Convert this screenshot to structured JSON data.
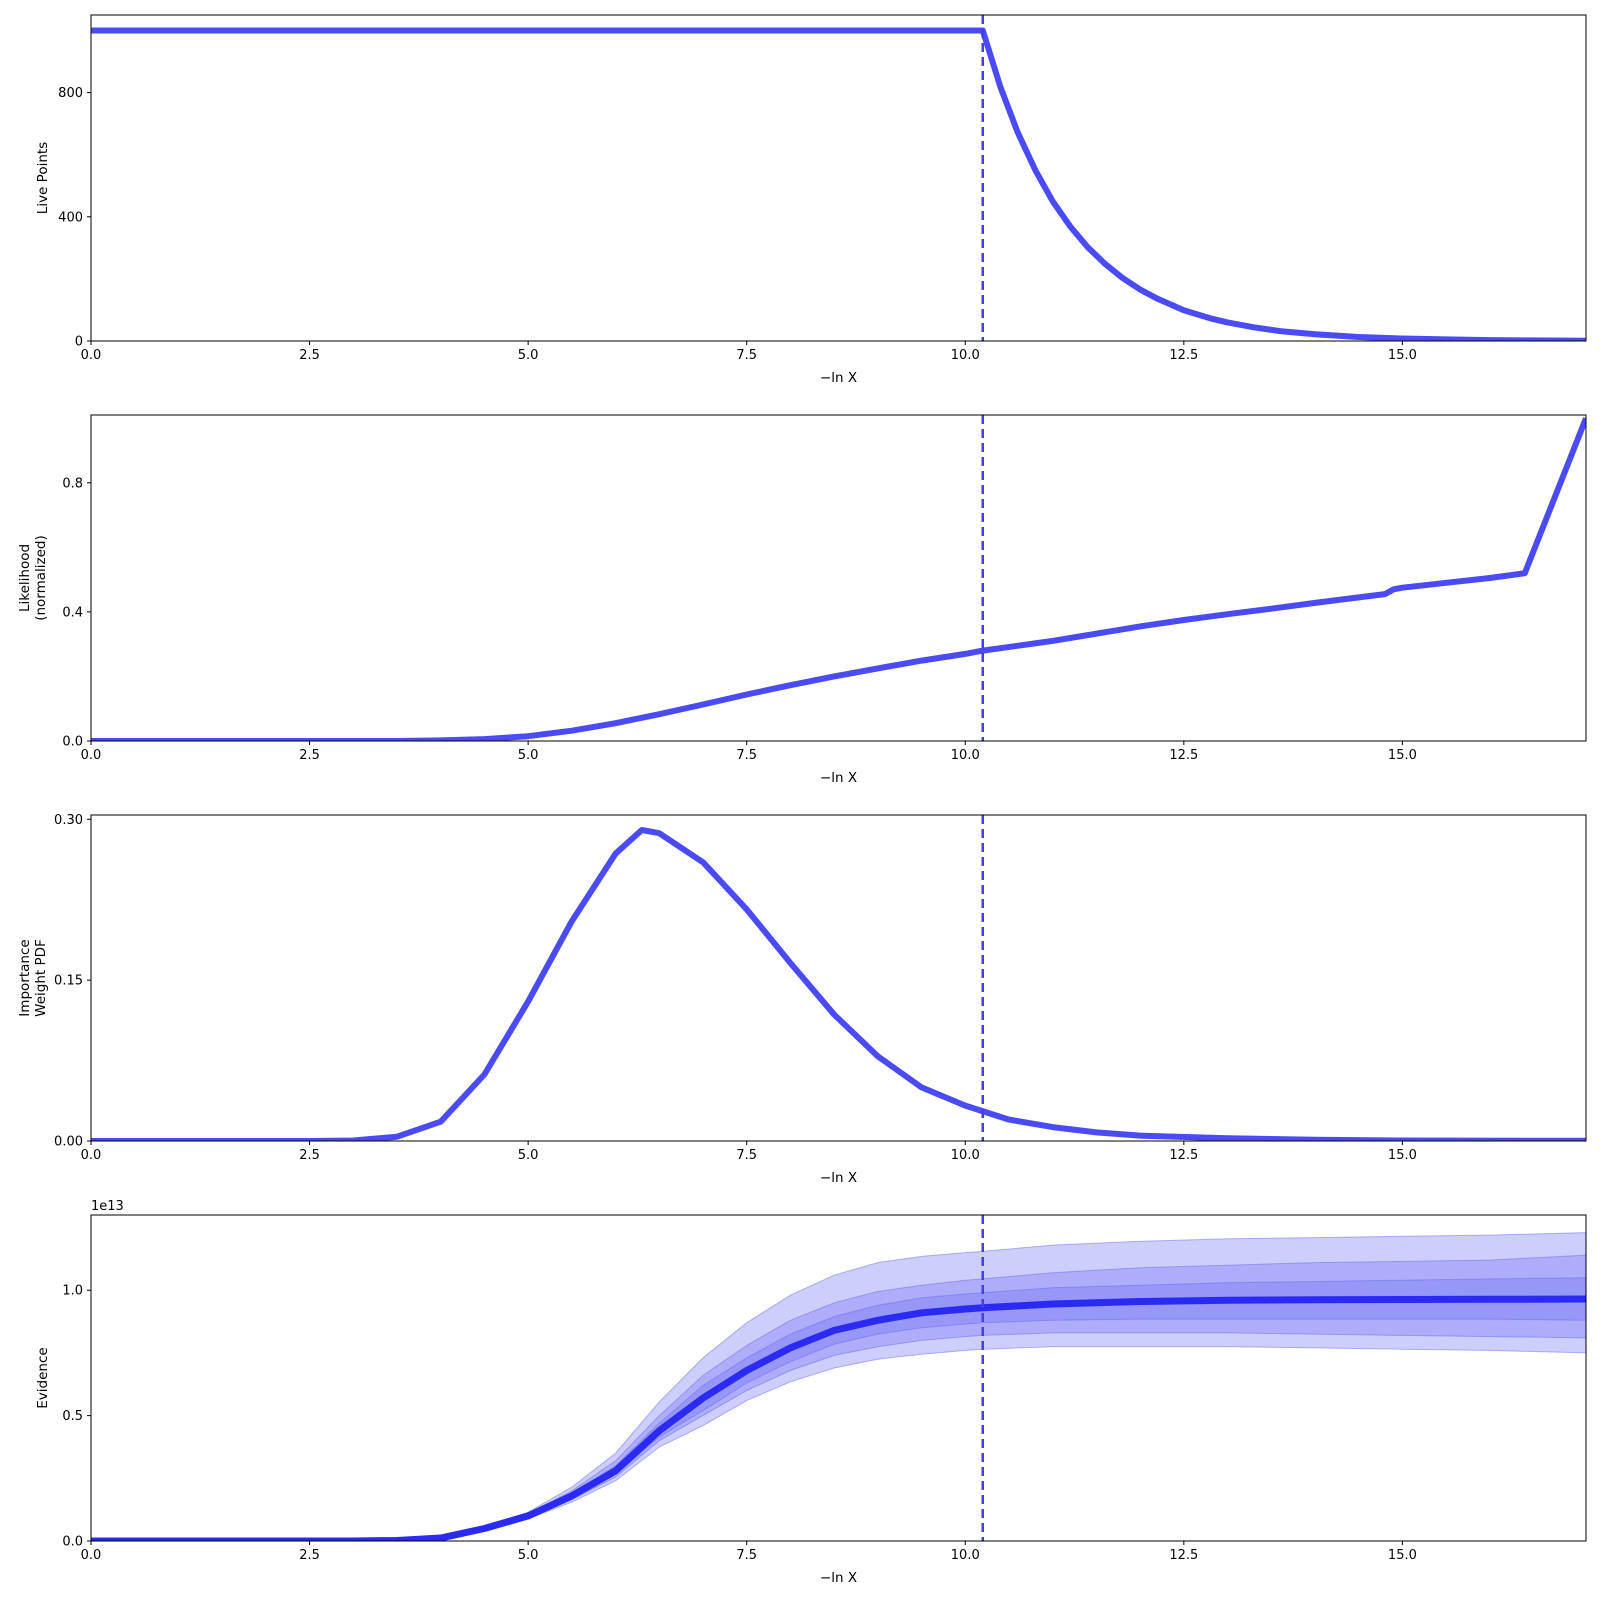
{
  "chart_data": [
    {
      "type": "line",
      "xlabel": "−ln X",
      "ylabel": [
        "Live Points"
      ],
      "xlim": [
        0,
        17.1
      ],
      "ylim": [
        0,
        1050
      ],
      "xticks": [
        0,
        2.5,
        5,
        7.5,
        10,
        12.5,
        15
      ],
      "xtick_labels": [
        "0.0",
        "2.5",
        "5.0",
        "7.5",
        "10.0",
        "12.5",
        "15.0"
      ],
      "yticks": [
        0,
        400,
        800
      ],
      "ytick_labels": [
        "0",
        "400",
        "800"
      ],
      "line_color": "#4b4bf5",
      "vline_x": 10.2,
      "x": [
        0,
        10.2,
        10.4,
        10.6,
        10.8,
        11.0,
        11.2,
        11.4,
        11.6,
        11.8,
        12.0,
        12.2,
        12.5,
        12.8,
        13.0,
        13.3,
        13.6,
        14.0,
        14.5,
        15.0,
        15.5,
        16.0,
        16.5,
        17.1
      ],
      "y": [
        1000,
        1000,
        820,
        672,
        551,
        450,
        369,
        302,
        248,
        203,
        166,
        136,
        99,
        73,
        60,
        44,
        32,
        22,
        13,
        8,
        5,
        3,
        2,
        1
      ]
    },
    {
      "type": "line",
      "xlabel": "−ln X",
      "ylabel": [
        "Likelihood",
        "(normalized)"
      ],
      "xlim": [
        0,
        17.1
      ],
      "ylim": [
        0,
        1.01
      ],
      "xticks": [
        0,
        2.5,
        5,
        7.5,
        10,
        12.5,
        15
      ],
      "xtick_labels": [
        "0.0",
        "2.5",
        "5.0",
        "7.5",
        "10.0",
        "12.5",
        "15.0"
      ],
      "yticks": [
        0,
        0.4,
        0.8
      ],
      "ytick_labels": [
        "0.0",
        "0.4",
        "0.8"
      ],
      "line_color": "#4b4bf5",
      "vline_x": 10.2,
      "x": [
        0,
        3.5,
        4.0,
        4.5,
        5.0,
        5.5,
        6.0,
        6.5,
        7.0,
        7.5,
        8.0,
        8.5,
        9.0,
        9.5,
        10.0,
        10.2,
        11.0,
        12.0,
        12.5,
        13.0,
        13.5,
        14.0,
        14.5,
        14.8,
        14.9,
        15.0,
        15.5,
        16.0,
        16.4,
        17.1
      ],
      "y": [
        0,
        0,
        0.002,
        0.006,
        0.015,
        0.032,
        0.055,
        0.083,
        0.113,
        0.144,
        0.173,
        0.2,
        0.225,
        0.249,
        0.27,
        0.28,
        0.31,
        0.355,
        0.375,
        0.393,
        0.41,
        0.428,
        0.445,
        0.455,
        0.47,
        0.475,
        0.49,
        0.505,
        0.52,
        1.0
      ]
    },
    {
      "type": "line",
      "xlabel": "−ln X",
      "ylabel": [
        "Importance",
        "Weight PDF"
      ],
      "xlim": [
        0,
        17.1
      ],
      "ylim": [
        0,
        0.304
      ],
      "xticks": [
        0,
        2.5,
        5,
        7.5,
        10,
        12.5,
        15
      ],
      "xtick_labels": [
        "0.0",
        "2.5",
        "5.0",
        "7.5",
        "10.0",
        "12.5",
        "15.0"
      ],
      "yticks": [
        0,
        0.15,
        0.3
      ],
      "ytick_labels": [
        "0.00",
        "0.15",
        "0.30"
      ],
      "line_color": "#4b4bf5",
      "vline_x": 10.2,
      "x": [
        0,
        2.5,
        3.0,
        3.5,
        4.0,
        4.5,
        5.0,
        5.5,
        6.0,
        6.3,
        6.5,
        7.0,
        7.5,
        8.0,
        8.5,
        9.0,
        9.5,
        10.0,
        10.5,
        11.0,
        11.5,
        12.0,
        13.0,
        14.0,
        15.0,
        17.1
      ],
      "y": [
        0,
        0,
        0.0005,
        0.004,
        0.018,
        0.062,
        0.13,
        0.205,
        0.268,
        0.29,
        0.287,
        0.26,
        0.216,
        0.166,
        0.118,
        0.079,
        0.05,
        0.033,
        0.02,
        0.013,
        0.008,
        0.005,
        0.0025,
        0.0012,
        0.0005,
        0.0002
      ]
    },
    {
      "type": "area",
      "xlabel": "−ln X",
      "ylabel": [
        "Evidence"
      ],
      "offset_label": "1e13",
      "xlim": [
        0,
        17.1
      ],
      "ylim": [
        0,
        1.3
      ],
      "xticks": [
        0,
        2.5,
        5,
        7.5,
        10,
        12.5,
        15
      ],
      "xtick_labels": [
        "0.0",
        "2.5",
        "5.0",
        "7.5",
        "10.0",
        "12.5",
        "15.0"
      ],
      "yticks": [
        0,
        0.5,
        1.0
      ],
      "ytick_labels": [
        "0.0",
        "0.5",
        "1.0"
      ],
      "line_color": "#2a2af2",
      "band_color": "#6b6bf5",
      "vline_x": 10.2,
      "x": [
        0,
        3.0,
        3.5,
        4.0,
        4.5,
        5.0,
        5.5,
        6.0,
        6.5,
        7.0,
        7.5,
        8.0,
        8.5,
        9.0,
        9.5,
        10.0,
        10.2,
        11.0,
        12.0,
        13.0,
        14.0,
        15.0,
        16.0,
        17.1
      ],
      "y": [
        0,
        0,
        0.002,
        0.012,
        0.05,
        0.1,
        0.18,
        0.28,
        0.44,
        0.57,
        0.68,
        0.77,
        0.84,
        0.88,
        0.91,
        0.925,
        0.93,
        0.945,
        0.955,
        0.96,
        0.962,
        0.963,
        0.964,
        0.965
      ],
      "bands": [
        {
          "upper": [
            0,
            0,
            0.002,
            0.014,
            0.056,
            0.115,
            0.215,
            0.35,
            0.555,
            0.73,
            0.87,
            0.98,
            1.06,
            1.11,
            1.135,
            1.15,
            1.155,
            1.18,
            1.195,
            1.205,
            1.21,
            1.215,
            1.22,
            1.23
          ],
          "lower": [
            0,
            0,
            0.002,
            0.011,
            0.045,
            0.088,
            0.155,
            0.24,
            0.375,
            0.46,
            0.56,
            0.635,
            0.69,
            0.725,
            0.745,
            0.76,
            0.765,
            0.775,
            0.775,
            0.775,
            0.77,
            0.765,
            0.76,
            0.75
          ]
        },
        {
          "upper": [
            0,
            0,
            0.002,
            0.013,
            0.053,
            0.108,
            0.2,
            0.32,
            0.5,
            0.66,
            0.78,
            0.88,
            0.95,
            0.995,
            1.02,
            1.04,
            1.045,
            1.07,
            1.09,
            1.1,
            1.11,
            1.115,
            1.12,
            1.14
          ],
          "lower": [
            0,
            0,
            0.002,
            0.011,
            0.047,
            0.093,
            0.165,
            0.255,
            0.4,
            0.5,
            0.6,
            0.68,
            0.74,
            0.775,
            0.8,
            0.815,
            0.82,
            0.83,
            0.83,
            0.83,
            0.825,
            0.82,
            0.815,
            0.81
          ]
        },
        {
          "upper": [
            0,
            0,
            0.002,
            0.012,
            0.051,
            0.103,
            0.19,
            0.3,
            0.47,
            0.62,
            0.73,
            0.825,
            0.895,
            0.94,
            0.97,
            0.985,
            0.99,
            1.01,
            1.02,
            1.03,
            1.035,
            1.04,
            1.045,
            1.05
          ],
          "lower": [
            0,
            0,
            0.002,
            0.012,
            0.049,
            0.097,
            0.172,
            0.265,
            0.415,
            0.52,
            0.63,
            0.715,
            0.785,
            0.825,
            0.85,
            0.865,
            0.87,
            0.88,
            0.885,
            0.885,
            0.885,
            0.885,
            0.885,
            0.88
          ]
        }
      ]
    }
  ]
}
